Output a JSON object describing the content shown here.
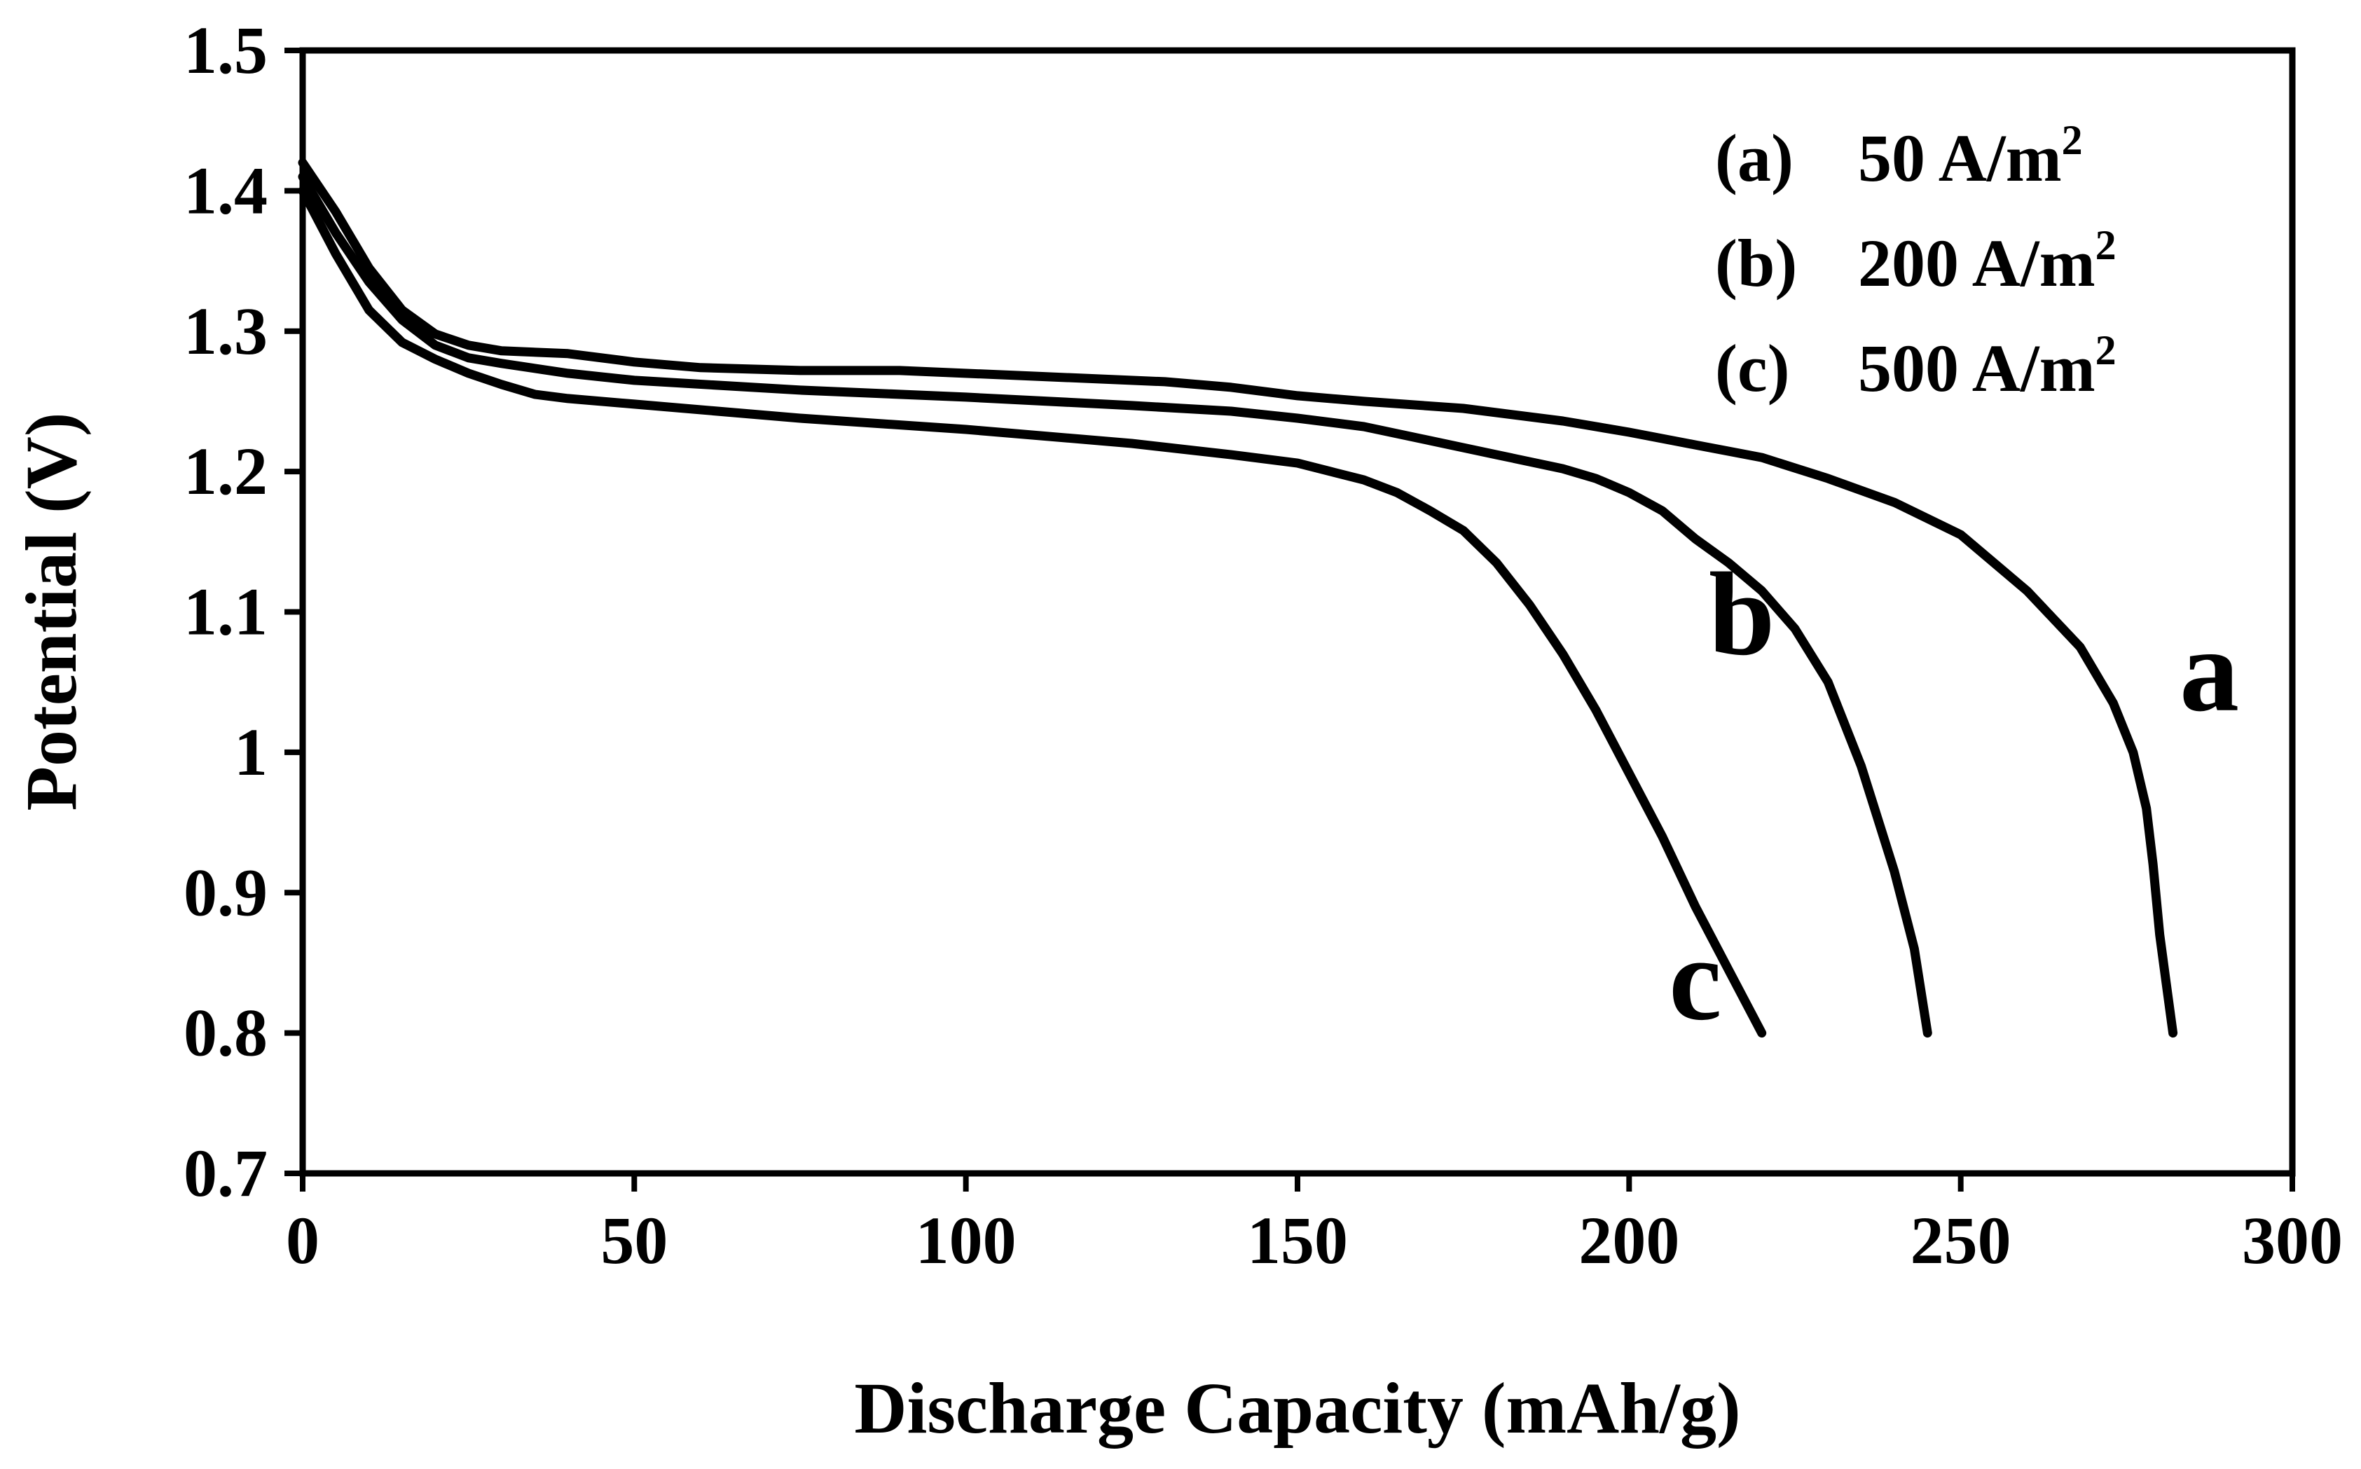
{
  "chart_data": {
    "type": "line",
    "title": "",
    "xlabel": "Discharge Capacity (mAh/g)",
    "ylabel": "Potential (V)",
    "xlim": [
      0,
      300
    ],
    "ylim": [
      0.7,
      1.5
    ],
    "x_ticks": [
      "0",
      "50",
      "100",
      "150",
      "200",
      "250",
      "300"
    ],
    "x_tick_values": [
      0,
      50,
      100,
      150,
      200,
      250,
      300
    ],
    "y_ticks": [
      "0.7",
      "0.8",
      "0.9",
      "1",
      "1.1",
      "1.2",
      "1.3",
      "1.4",
      "1.5"
    ],
    "y_tick_values": [
      0.7,
      0.8,
      0.9,
      1.0,
      1.1,
      1.2,
      1.3,
      1.4,
      1.5
    ],
    "grid": false,
    "legend": {
      "placement": "top-right",
      "entries": [
        {
          "prefix": "(a)",
          "value": "50 A/m",
          "sup": "2"
        },
        {
          "prefix": "(b)",
          "value": "200 A/m",
          "sup": "2"
        },
        {
          "prefix": "(c)",
          "value": "500 A/m",
          "sup": "2"
        }
      ]
    },
    "series": [
      {
        "name": "a",
        "label": "a",
        "label_pos": [
          283,
          1.03
        ],
        "color": "#000000",
        "points": [
          [
            0,
            1.42
          ],
          [
            5,
            1.385
          ],
          [
            10,
            1.345
          ],
          [
            15,
            1.315
          ],
          [
            20,
            1.298
          ],
          [
            25,
            1.29
          ],
          [
            30,
            1.286
          ],
          [
            40,
            1.284
          ],
          [
            50,
            1.278
          ],
          [
            60,
            1.274
          ],
          [
            75,
            1.272
          ],
          [
            90,
            1.272
          ],
          [
            110,
            1.268
          ],
          [
            130,
            1.264
          ],
          [
            140,
            1.26
          ],
          [
            150,
            1.254
          ],
          [
            160,
            1.25
          ],
          [
            175,
            1.245
          ],
          [
            190,
            1.236
          ],
          [
            200,
            1.228
          ],
          [
            210,
            1.219
          ],
          [
            220,
            1.21
          ],
          [
            230,
            1.195
          ],
          [
            240,
            1.178
          ],
          [
            250,
            1.155
          ],
          [
            260,
            1.115
          ],
          [
            268,
            1.075
          ],
          [
            273,
            1.035
          ],
          [
            276,
            1.0
          ],
          [
            278,
            0.96
          ],
          [
            279,
            0.92
          ],
          [
            280,
            0.87
          ],
          [
            281,
            0.835
          ],
          [
            282,
            0.8
          ]
        ]
      },
      {
        "name": "b",
        "label": "b",
        "label_pos": [
          212,
          1.07
        ],
        "color": "#000000",
        "points": [
          [
            0,
            1.41
          ],
          [
            5,
            1.37
          ],
          [
            10,
            1.335
          ],
          [
            15,
            1.308
          ],
          [
            20,
            1.29
          ],
          [
            25,
            1.281
          ],
          [
            30,
            1.277
          ],
          [
            40,
            1.27
          ],
          [
            50,
            1.265
          ],
          [
            75,
            1.258
          ],
          [
            100,
            1.253
          ],
          [
            125,
            1.247
          ],
          [
            140,
            1.243
          ],
          [
            150,
            1.238
          ],
          [
            160,
            1.232
          ],
          [
            170,
            1.222
          ],
          [
            180,
            1.212
          ],
          [
            190,
            1.202
          ],
          [
            195,
            1.195
          ],
          [
            200,
            1.185
          ],
          [
            205,
            1.172
          ],
          [
            210,
            1.152
          ],
          [
            215,
            1.135
          ],
          [
            220,
            1.115
          ],
          [
            225,
            1.088
          ],
          [
            230,
            1.05
          ],
          [
            235,
            0.99
          ],
          [
            240,
            0.915
          ],
          [
            243,
            0.86
          ],
          [
            245,
            0.8
          ]
        ]
      },
      {
        "name": "c",
        "label": "c",
        "label_pos": [
          206,
          0.81
        ],
        "color": "#000000",
        "points": [
          [
            0,
            1.4
          ],
          [
            5,
            1.355
          ],
          [
            10,
            1.315
          ],
          [
            15,
            1.292
          ],
          [
            20,
            1.28
          ],
          [
            25,
            1.27
          ],
          [
            30,
            1.262
          ],
          [
            35,
            1.255
          ],
          [
            40,
            1.252
          ],
          [
            50,
            1.248
          ],
          [
            75,
            1.238
          ],
          [
            100,
            1.23
          ],
          [
            125,
            1.22
          ],
          [
            140,
            1.212
          ],
          [
            150,
            1.206
          ],
          [
            155,
            1.2
          ],
          [
            160,
            1.194
          ],
          [
            165,
            1.185
          ],
          [
            170,
            1.172
          ],
          [
            175,
            1.158
          ],
          [
            180,
            1.135
          ],
          [
            185,
            1.105
          ],
          [
            190,
            1.07
          ],
          [
            195,
            1.03
          ],
          [
            200,
            0.985
          ],
          [
            205,
            0.94
          ],
          [
            210,
            0.89
          ],
          [
            215,
            0.845
          ],
          [
            220,
            0.8
          ]
        ]
      }
    ]
  }
}
